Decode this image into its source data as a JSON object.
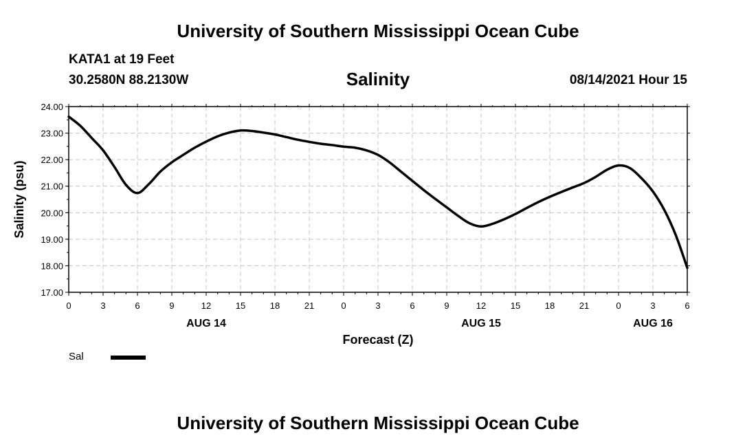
{
  "header": {
    "title": "University of Southern Mississippi Ocean Cube",
    "station": "KATA1 at 19 Feet",
    "coordinates": "30.2580N  88.2130W",
    "parameter": "Salinity",
    "timestamp": "08/14/2021 Hour 15"
  },
  "footer": {
    "title": "University of Southern Mississippi Ocean Cube"
  },
  "legend": {
    "label": "Sal"
  },
  "chart_data": {
    "type": "line",
    "title": "Salinity",
    "xlabel": "Forecast (Z)",
    "ylabel": "Salinity (psu)",
    "ylim": [
      17.0,
      24.0
    ],
    "xlim": [
      0,
      54
    ],
    "grid": true,
    "legend_position": "bottom-left",
    "y_ticks": [
      "17.00",
      "18.00",
      "19.00",
      "20.00",
      "21.00",
      "22.00",
      "23.00",
      "24.00"
    ],
    "x_ticks": [
      {
        "x": 0,
        "label": "0"
      },
      {
        "x": 3,
        "label": "3"
      },
      {
        "x": 6,
        "label": "6"
      },
      {
        "x": 9,
        "label": "9"
      },
      {
        "x": 12,
        "label": "12"
      },
      {
        "x": 15,
        "label": "15"
      },
      {
        "x": 18,
        "label": "18"
      },
      {
        "x": 21,
        "label": "21"
      },
      {
        "x": 24,
        "label": "0"
      },
      {
        "x": 27,
        "label": "3"
      },
      {
        "x": 30,
        "label": "6"
      },
      {
        "x": 33,
        "label": "9"
      },
      {
        "x": 36,
        "label": "12"
      },
      {
        "x": 39,
        "label": "15"
      },
      {
        "x": 42,
        "label": "18"
      },
      {
        "x": 45,
        "label": "21"
      },
      {
        "x": 48,
        "label": "0"
      },
      {
        "x": 51,
        "label": "3"
      },
      {
        "x": 54,
        "label": "6"
      }
    ],
    "day_labels": [
      {
        "x": 12,
        "label": "AUG 14"
      },
      {
        "x": 36,
        "label": "AUG 15"
      },
      {
        "x": 51,
        "label": "AUG 16"
      }
    ],
    "series": [
      {
        "name": "Sal",
        "color": "#000000",
        "x": [
          0,
          1,
          2,
          3,
          4,
          5,
          6,
          7,
          8,
          9,
          10,
          11,
          12,
          13,
          14,
          15,
          16,
          17,
          18,
          19,
          20,
          21,
          22,
          23,
          24,
          25,
          26,
          27,
          28,
          29,
          30,
          31,
          32,
          33,
          34,
          35,
          36,
          37,
          38,
          39,
          40,
          41,
          42,
          43,
          44,
          45,
          46,
          47,
          48,
          49,
          50,
          51,
          52,
          53,
          54
        ],
        "y": [
          23.62,
          23.28,
          22.82,
          22.35,
          21.72,
          21.05,
          20.74,
          21.08,
          21.55,
          21.9,
          22.18,
          22.45,
          22.68,
          22.88,
          23.02,
          23.1,
          23.08,
          23.02,
          22.95,
          22.85,
          22.75,
          22.67,
          22.6,
          22.55,
          22.49,
          22.45,
          22.35,
          22.18,
          21.9,
          21.55,
          21.2,
          20.85,
          20.52,
          20.2,
          19.88,
          19.6,
          19.48,
          19.58,
          19.75,
          19.95,
          20.18,
          20.4,
          20.6,
          20.78,
          20.95,
          21.12,
          21.35,
          21.62,
          21.78,
          21.68,
          21.3,
          20.8,
          20.1,
          19.15,
          17.92
        ]
      }
    ]
  }
}
